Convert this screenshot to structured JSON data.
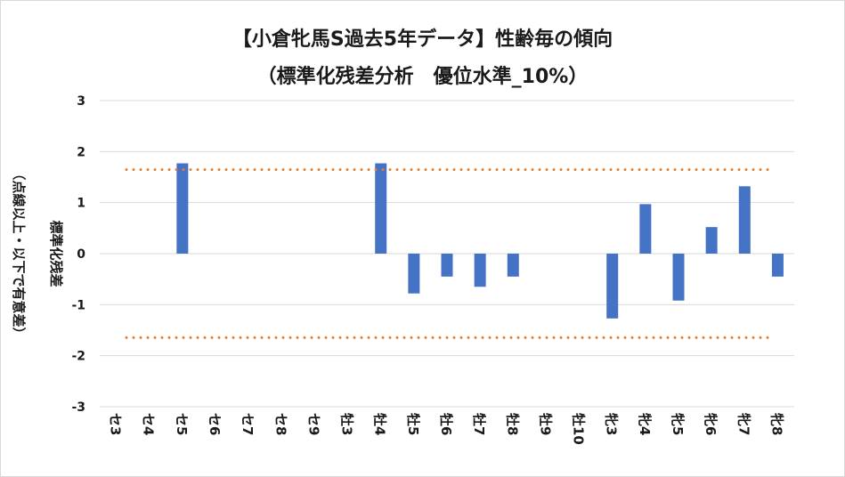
{
  "chart_data": {
    "type": "bar",
    "title_line1": "【小倉牝馬S過去5年データ】性齢毎の傾向",
    "title_line2": "（標準化残差分析　優位水準_10%）",
    "ylabel_line1": "標準化残差",
    "ylabel_line2": "（点線以上・以下で有意差）",
    "ylim": [
      -3,
      3
    ],
    "yticks": [
      3,
      2,
      1,
      0,
      -1,
      -2,
      -3
    ],
    "threshold_upper": 1.645,
    "threshold_lower": -1.645,
    "categories": [
      "セ3",
      "セ4",
      "セ5",
      "セ6",
      "セ7",
      "セ8",
      "セ9",
      "牡3",
      "牡4",
      "牡5",
      "牡6",
      "牡7",
      "牡8",
      "牡9",
      "牡10",
      "牝3",
      "牝4",
      "牝5",
      "牝6",
      "牝7",
      "牝8"
    ],
    "values": [
      0,
      0,
      1.77,
      0,
      0,
      0,
      0,
      0,
      1.77,
      -0.78,
      -0.45,
      -0.65,
      -0.45,
      0,
      0,
      -1.27,
      0.97,
      -0.92,
      0.52,
      1.32,
      -0.45
    ],
    "colors": {
      "bar": "#4472c4",
      "threshold": "#ed7d31",
      "grid": "#d9d9d9"
    },
    "grid": true,
    "legend": "none"
  }
}
